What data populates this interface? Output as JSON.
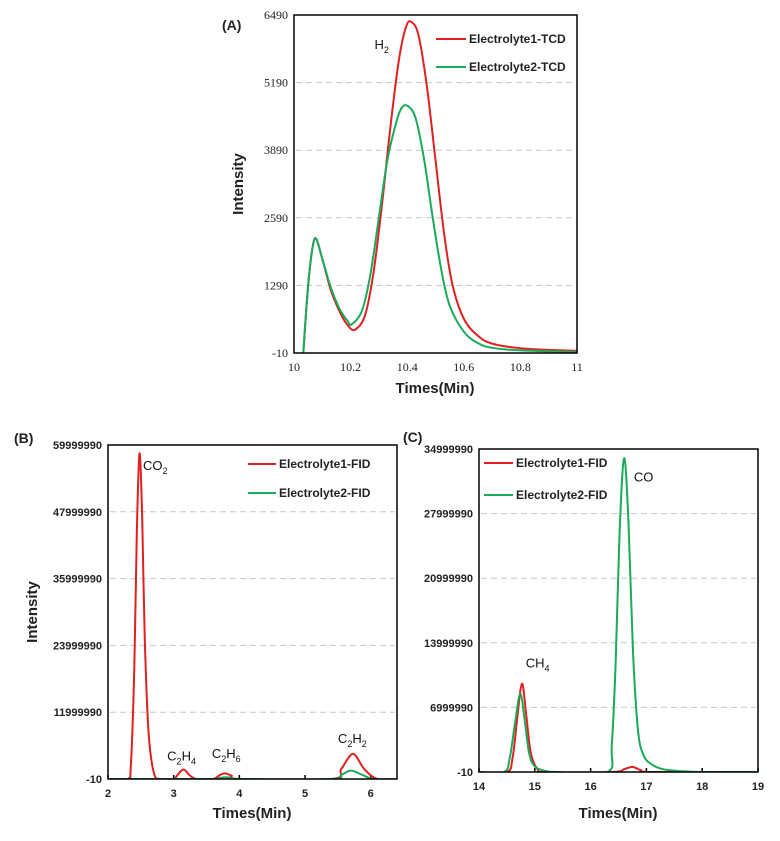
{
  "colors": {
    "electrolyte1": "#e02020",
    "electrolyte2": "#1aaa5a",
    "grid": "#c8c8c8",
    "frame": "#000000"
  },
  "chart_data": [
    {
      "type": "line",
      "panel_label": "(A)",
      "xlabel": "Times(Min)",
      "ylabel": "Intensity",
      "xlim": [
        10,
        11
      ],
      "ylim": [
        -10,
        6490
      ],
      "xticks": [
        "10",
        "10.2",
        "10.4",
        "10.6",
        "10.8",
        "11"
      ],
      "yticks": [
        "-10",
        "1290",
        "2590",
        "3890",
        "5190",
        "6490"
      ],
      "grid": "horizontal dashed",
      "legend_position": "top-right",
      "annotations": [
        {
          "text": "H",
          "sub": "2",
          "x": 10.31,
          "y": 5840
        }
      ],
      "series": [
        {
          "name": "Electrolyte1-TCD",
          "color_key": "electrolyte1",
          "points": [
            [
              10.033,
              -10
            ],
            [
              10.05,
              1300
            ],
            [
              10.065,
              2000
            ],
            [
              10.078,
              2190
            ],
            [
              10.1,
              1800
            ],
            [
              10.13,
              1200
            ],
            [
              10.16,
              800
            ],
            [
              10.19,
              520
            ],
            [
              10.216,
              440
            ],
            [
              10.25,
              700
            ],
            [
              10.28,
              1500
            ],
            [
              10.31,
              2800
            ],
            [
              10.34,
              4300
            ],
            [
              10.37,
              5600
            ],
            [
              10.395,
              6250
            ],
            [
              10.414,
              6360
            ],
            [
              10.44,
              6100
            ],
            [
              10.47,
              5100
            ],
            [
              10.5,
              3700
            ],
            [
              10.53,
              2300
            ],
            [
              10.56,
              1300
            ],
            [
              10.6,
              650
            ],
            [
              10.65,
              320
            ],
            [
              10.7,
              170
            ],
            [
              10.8,
              80
            ],
            [
              10.9,
              50
            ],
            [
              11,
              30
            ]
          ]
        },
        {
          "name": "Electrolyte2-TCD",
          "color_key": "electrolyte2",
          "points": [
            [
              10.033,
              -10
            ],
            [
              10.05,
              1300
            ],
            [
              10.065,
              2000
            ],
            [
              10.078,
              2190
            ],
            [
              10.1,
              1800
            ],
            [
              10.13,
              1250
            ],
            [
              10.16,
              850
            ],
            [
              10.19,
              600
            ],
            [
              10.204,
              540
            ],
            [
              10.24,
              800
            ],
            [
              10.27,
              1500
            ],
            [
              10.3,
              2600
            ],
            [
              10.33,
              3700
            ],
            [
              10.36,
              4400
            ],
            [
              10.38,
              4700
            ],
            [
              10.402,
              4740
            ],
            [
              10.43,
              4500
            ],
            [
              10.46,
              3700
            ],
            [
              10.49,
              2600
            ],
            [
              10.52,
              1600
            ],
            [
              10.55,
              900
            ],
            [
              10.6,
              400
            ],
            [
              10.65,
              180
            ],
            [
              10.7,
              90
            ],
            [
              10.8,
              40
            ],
            [
              11,
              10
            ]
          ]
        }
      ]
    },
    {
      "type": "line",
      "panel_label": "(B)",
      "xlabel": "Times(Min)",
      "ylabel": "Intensity",
      "xlim": [
        2,
        6.4
      ],
      "ylim": [
        -10,
        59999990
      ],
      "xticks": [
        "2",
        "3",
        "4",
        "5",
        "6"
      ],
      "yticks": [
        "-10",
        "11999990",
        "23999990",
        "35999990",
        "47999990",
        "59999990"
      ],
      "grid": "horizontal dashed",
      "legend_position": "top-right",
      "annotations": [
        {
          "text": "CO",
          "sub": "2",
          "x": 2.72,
          "y": 55500000
        },
        {
          "text": "C",
          "sub": "2",
          "text2": "H",
          "sub2": "4",
          "x": 3.12,
          "y": 3300000
        },
        {
          "text": "C",
          "sub": "2",
          "text2": "H",
          "sub2": "6",
          "x": 3.8,
          "y": 3800000
        },
        {
          "text": "C",
          "sub": "2",
          "text2": "H",
          "sub2": "2",
          "x": 5.72,
          "y": 6500000
        }
      ],
      "series": [
        {
          "name": "Electrolyte1-FID",
          "color_key": "electrolyte1",
          "points": [
            [
              2,
              -10
            ],
            [
              2.3,
              -10
            ],
            [
              2.35,
              3000000
            ],
            [
              2.4,
              20000000
            ],
            [
              2.44,
              45000000
            ],
            [
              2.48,
              58500000
            ],
            [
              2.52,
              47000000
            ],
            [
              2.56,
              25000000
            ],
            [
              2.62,
              8000000
            ],
            [
              2.7,
              1000000
            ],
            [
              2.8,
              -10
            ],
            [
              3.0,
              -10
            ],
            [
              3.05,
              600000
            ],
            [
              3.15,
              1700000
            ],
            [
              3.25,
              600000
            ],
            [
              3.35,
              -10
            ],
            [
              3.6,
              -10
            ],
            [
              3.7,
              700000
            ],
            [
              3.78,
              1000000
            ],
            [
              3.88,
              600000
            ],
            [
              4.0,
              -10
            ],
            [
              5.4,
              -10
            ],
            [
              5.55,
              1800000
            ],
            [
              5.73,
              4500000
            ],
            [
              5.9,
              1800000
            ],
            [
              6.1,
              -10
            ],
            [
              6.4,
              -10
            ]
          ]
        },
        {
          "name": "Electrolyte2-FID",
          "color_key": "electrolyte2",
          "points": [
            [
              2,
              -10
            ],
            [
              3.55,
              -10
            ],
            [
              3.7,
              200000
            ],
            [
              3.78,
              300000
            ],
            [
              3.88,
              200000
            ],
            [
              4.0,
              -10
            ],
            [
              5.4,
              -10
            ],
            [
              5.55,
              700000
            ],
            [
              5.7,
              1500000
            ],
            [
              5.88,
              700000
            ],
            [
              6.05,
              -10
            ],
            [
              6.4,
              -10
            ]
          ]
        }
      ]
    },
    {
      "type": "line",
      "panel_label": "(C)",
      "xlabel": "Times(Min)",
      "ylabel": "",
      "xlim": [
        14,
        19
      ],
      "ylim": [
        -10,
        34999990
      ],
      "xticks": [
        "14",
        "15",
        "16",
        "17",
        "18",
        "19"
      ],
      "yticks": [
        "-10",
        "6999990",
        "13999990",
        "20999990",
        "27999990",
        "34999990"
      ],
      "grid": "horizontal dashed",
      "legend_position": "top-left",
      "annotations": [
        {
          "text": "CO",
          "sub": "",
          "x": 16.95,
          "y": 31500000
        },
        {
          "text": "CH",
          "sub": "4",
          "x": 15.05,
          "y": 11300000
        }
      ],
      "series": [
        {
          "name": "Electrolyte1-FID",
          "color_key": "electrolyte1",
          "points": [
            [
              14,
              -10
            ],
            [
              14.5,
              -10
            ],
            [
              14.6,
              1500000
            ],
            [
              14.68,
              5500000
            ],
            [
              14.77,
              9570000
            ],
            [
              14.85,
              6000000
            ],
            [
              14.93,
              2000000
            ],
            [
              15.05,
              300000
            ],
            [
              15.2,
              -10
            ],
            [
              16.4,
              -10
            ],
            [
              16.6,
              300000
            ],
            [
              16.75,
              550000
            ],
            [
              16.9,
              200000
            ],
            [
              17.1,
              -10
            ],
            [
              19,
              -10
            ]
          ]
        },
        {
          "name": "Electrolyte2-FID",
          "color_key": "electrolyte2",
          "points": [
            [
              14,
              -10
            ],
            [
              14.45,
              -10
            ],
            [
              14.55,
              1500000
            ],
            [
              14.65,
              5500000
            ],
            [
              14.74,
              8500000
            ],
            [
              14.82,
              5500000
            ],
            [
              14.9,
              2000000
            ],
            [
              15.0,
              600000
            ],
            [
              15.2,
              100000
            ],
            [
              15.4,
              -10
            ],
            [
              16.3,
              -10
            ],
            [
              16.38,
              3000000
            ],
            [
              16.45,
              12000000
            ],
            [
              16.52,
              26000000
            ],
            [
              16.6,
              34000000
            ],
            [
              16.68,
              27000000
            ],
            [
              16.76,
              13000000
            ],
            [
              16.85,
              4500000
            ],
            [
              16.95,
              1800000
            ],
            [
              17.1,
              800000
            ],
            [
              17.3,
              300000
            ],
            [
              17.6,
              100000
            ],
            [
              18,
              -10
            ],
            [
              19,
              -10
            ]
          ]
        }
      ]
    }
  ]
}
